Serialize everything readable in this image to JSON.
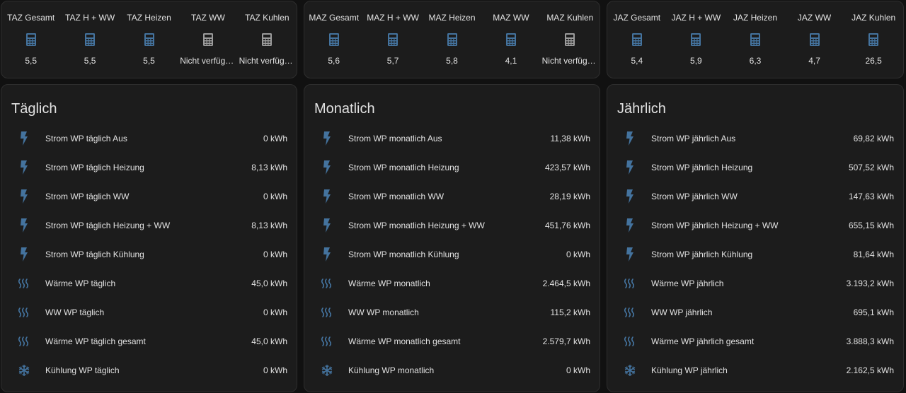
{
  "colors": {
    "icon_active": "#44739e",
    "icon_inactive": "#9b9b9b",
    "card_bg": "#1c1c1c",
    "page_bg": "#111111",
    "text": "#e1e1e1"
  },
  "glances": [
    {
      "items": [
        {
          "name": "TAZ Gesamt",
          "state": "5,5",
          "icon": "calculator-icon",
          "active": true
        },
        {
          "name": "TAZ H + WW",
          "state": "5,5",
          "icon": "calculator-icon",
          "active": true
        },
        {
          "name": "TAZ Heizen",
          "state": "5,5",
          "icon": "calculator-icon",
          "active": true
        },
        {
          "name": "TAZ WW",
          "state": "Nicht verfügbar",
          "icon": "calculator-icon",
          "active": false
        },
        {
          "name": "TAZ Kuhlen",
          "state": "Nicht verfügbar",
          "icon": "calculator-icon",
          "active": false
        }
      ]
    },
    {
      "items": [
        {
          "name": "MAZ Gesamt",
          "state": "5,6",
          "icon": "calculator-icon",
          "active": true
        },
        {
          "name": "MAZ H + WW",
          "state": "5,7",
          "icon": "calculator-icon",
          "active": true
        },
        {
          "name": "MAZ Heizen",
          "state": "5,8",
          "icon": "calculator-icon",
          "active": true
        },
        {
          "name": "MAZ WW",
          "state": "4,1",
          "icon": "calculator-icon",
          "active": true
        },
        {
          "name": "MAZ Kuhlen",
          "state": "Nicht verfügbar",
          "icon": "calculator-icon",
          "active": false
        }
      ]
    },
    {
      "items": [
        {
          "name": "JAZ Gesamt",
          "state": "5,4",
          "icon": "calculator-icon",
          "active": true
        },
        {
          "name": "JAZ H + WW",
          "state": "5,9",
          "icon": "calculator-icon",
          "active": true
        },
        {
          "name": "JAZ Heizen",
          "state": "6,3",
          "icon": "calculator-icon",
          "active": true
        },
        {
          "name": "JAZ WW",
          "state": "4,7",
          "icon": "calculator-icon",
          "active": true
        },
        {
          "name": "JAZ Kuhlen",
          "state": "26,5",
          "icon": "calculator-icon",
          "active": true
        }
      ]
    }
  ],
  "cards": [
    {
      "title": "Täglich",
      "rows": [
        {
          "name": "Strom WP täglich Aus",
          "value": "0 kWh",
          "icon": "lightning-icon"
        },
        {
          "name": "Strom WP täglich Heizung",
          "value": "8,13 kWh",
          "icon": "lightning-icon"
        },
        {
          "name": "Strom WP täglich WW",
          "value": "0 kWh",
          "icon": "lightning-icon"
        },
        {
          "name": "Strom WP täglich Heizung + WW",
          "value": "8,13 kWh",
          "icon": "lightning-icon"
        },
        {
          "name": "Strom WP täglich Kühlung",
          "value": "0 kWh",
          "icon": "lightning-icon"
        },
        {
          "name": "Wärme WP täglich",
          "value": "45,0 kWh",
          "icon": "heat-wave-icon"
        },
        {
          "name": "WW WP täglich",
          "value": "0 kWh",
          "icon": "heat-wave-icon"
        },
        {
          "name": "Wärme WP täglich gesamt",
          "value": "45,0 kWh",
          "icon": "heat-wave-icon"
        },
        {
          "name": "Kühlung WP täglich",
          "value": "0 kWh",
          "icon": "snowflake-icon"
        }
      ]
    },
    {
      "title": "Monatlich",
      "rows": [
        {
          "name": "Strom WP monatlich Aus",
          "value": "11,38 kWh",
          "icon": "lightning-icon"
        },
        {
          "name": "Strom WP monatlich Heizung",
          "value": "423,57 kWh",
          "icon": "lightning-icon"
        },
        {
          "name": "Strom WP monatlich WW",
          "value": "28,19 kWh",
          "icon": "lightning-icon"
        },
        {
          "name": "Strom WP monatlich Heizung + WW",
          "value": "451,76 kWh",
          "icon": "lightning-icon"
        },
        {
          "name": "Strom WP monatlich Kühlung",
          "value": "0 kWh",
          "icon": "lightning-icon"
        },
        {
          "name": "Wärme WP monatlich",
          "value": "2.464,5 kWh",
          "icon": "heat-wave-icon"
        },
        {
          "name": "WW WP monatlich",
          "value": "115,2 kWh",
          "icon": "heat-wave-icon"
        },
        {
          "name": "Wärme WP monatlich gesamt",
          "value": "2.579,7 kWh",
          "icon": "heat-wave-icon"
        },
        {
          "name": "Kühlung WP monatlich",
          "value": "0 kWh",
          "icon": "snowflake-icon"
        }
      ]
    },
    {
      "title": "Jährlich",
      "rows": [
        {
          "name": "Strom WP jährlich Aus",
          "value": "69,82 kWh",
          "icon": "lightning-icon"
        },
        {
          "name": "Strom WP jährlich Heizung",
          "value": "507,52 kWh",
          "icon": "lightning-icon"
        },
        {
          "name": "Strom WP jährlich WW",
          "value": "147,63 kWh",
          "icon": "lightning-icon"
        },
        {
          "name": "Strom WP jährlich Heizung + WW",
          "value": "655,15 kWh",
          "icon": "lightning-icon"
        },
        {
          "name": "Strom WP jährlich Kühlung",
          "value": "81,64 kWh",
          "icon": "lightning-icon"
        },
        {
          "name": "Wärme WP jährlich",
          "value": "3.193,2 kWh",
          "icon": "heat-wave-icon"
        },
        {
          "name": "WW WP jährlich",
          "value": "695,1 kWh",
          "icon": "heat-wave-icon"
        },
        {
          "name": "Wärme WP jährlich gesamt",
          "value": "3.888,3 kWh",
          "icon": "heat-wave-icon"
        },
        {
          "name": "Kühlung WP jährlich",
          "value": "2.162,5 kWh",
          "icon": "snowflake-icon"
        }
      ]
    }
  ]
}
